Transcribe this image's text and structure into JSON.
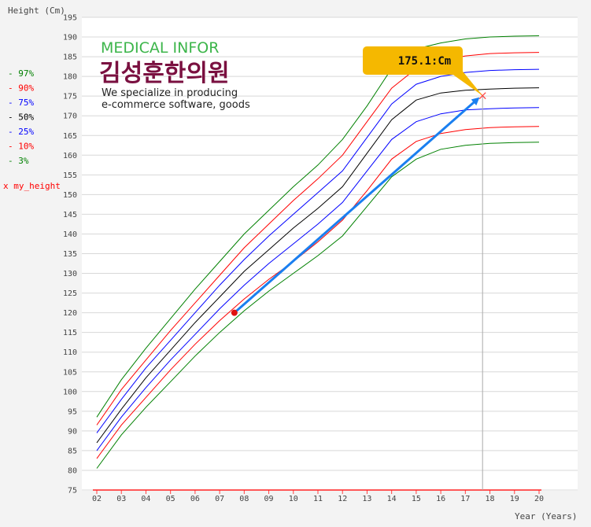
{
  "chart_data": {
    "type": "line",
    "ylabel": "Height (Cm)",
    "xlabel": "Year (Years)",
    "xlim": [
      2,
      20
    ],
    "ylim": [
      75,
      195
    ],
    "x_ticks": [
      "02",
      "03",
      "04",
      "05",
      "06",
      "07",
      "08",
      "09",
      "10",
      "11",
      "12",
      "13",
      "14",
      "15",
      "16",
      "17",
      "18",
      "19",
      "20"
    ],
    "y_ticks": [
      "75",
      "80",
      "85",
      "90",
      "95",
      "100",
      "105",
      "110",
      "115",
      "120",
      "125",
      "130",
      "135",
      "140",
      "145",
      "150",
      "155",
      "160",
      "165",
      "170",
      "175",
      "180",
      "185",
      "190",
      "195"
    ],
    "grid": true,
    "legend_position": "left",
    "legend": [
      {
        "label": "- 97%",
        "color": "#008000"
      },
      {
        "label": "- 90%",
        "color": "#ff0000"
      },
      {
        "label": "- 75%",
        "color": "#0000ff"
      },
      {
        "label": "- 50%",
        "color": "#000000"
      },
      {
        "label": "- 25%",
        "color": "#0000ff"
      },
      {
        "label": "- 10%",
        "color": "#ff0000"
      },
      {
        "label": "- 3%",
        "color": "#008000"
      },
      {
        "label": "x my_height",
        "color": "#ff0000"
      }
    ],
    "x": [
      2,
      3,
      4,
      5,
      6,
      7,
      8,
      9,
      10,
      11,
      12,
      13,
      14,
      15,
      16,
      17,
      18,
      19,
      20
    ],
    "series": [
      {
        "color": "#008000",
        "values": [
          93.5,
          103,
          111,
          118.5,
          126,
          133,
          140,
          146,
          152,
          157.5,
          164,
          172.5,
          182,
          187,
          188.5,
          189.5,
          190,
          190.2,
          190.3
        ]
      },
      {
        "color": "#ff0000",
        "values": [
          91.5,
          100.5,
          108,
          115.5,
          122.5,
          129.5,
          136.5,
          142.5,
          148.5,
          154,
          160,
          168.5,
          177,
          182,
          184,
          185.2,
          185.8,
          186,
          186.1
        ]
      },
      {
        "color": "#0000ff",
        "values": [
          89.5,
          98,
          106,
          113,
          120,
          127,
          133.5,
          139.5,
          145,
          150.5,
          156,
          164.5,
          173,
          178,
          180,
          181,
          181.5,
          181.7,
          181.8
        ]
      },
      {
        "color": "#000000",
        "values": [
          87,
          95.5,
          103.5,
          110.5,
          117.5,
          124,
          130.5,
          136,
          141.5,
          146.5,
          152,
          160.5,
          169,
          174,
          175.8,
          176.5,
          176.8,
          177,
          177.1
        ]
      },
      {
        "color": "#0000ff",
        "values": [
          85,
          93.5,
          101,
          108,
          114.5,
          121,
          127,
          132.5,
          137.5,
          142.5,
          148,
          156,
          164,
          168.5,
          170.5,
          171.5,
          171.8,
          172,
          172.1
        ]
      },
      {
        "color": "#ff0000",
        "values": [
          83,
          91.5,
          98.5,
          105.5,
          112,
          118,
          123.5,
          128.5,
          133,
          138,
          143.5,
          151,
          159,
          163.5,
          165.5,
          166.5,
          167,
          167.2,
          167.3
        ]
      },
      {
        "color": "#008000",
        "values": [
          80.5,
          89,
          96,
          102.5,
          109,
          115,
          120.5,
          125.5,
          130,
          134.5,
          139.5,
          147,
          154.5,
          159,
          161.5,
          162.5,
          163,
          163.2,
          163.3
        ]
      }
    ],
    "my_height": {
      "x": 7.6,
      "y": 120
    },
    "predicted": {
      "x": 17.7,
      "y": 175.1,
      "label": "175.1:Cm"
    }
  },
  "watermark": {
    "line1": "MEDICAL  INFOR",
    "line2": "김성훈한의원",
    "line3": "We specialize in producing",
    "line4": "e-commerce software, goods"
  }
}
